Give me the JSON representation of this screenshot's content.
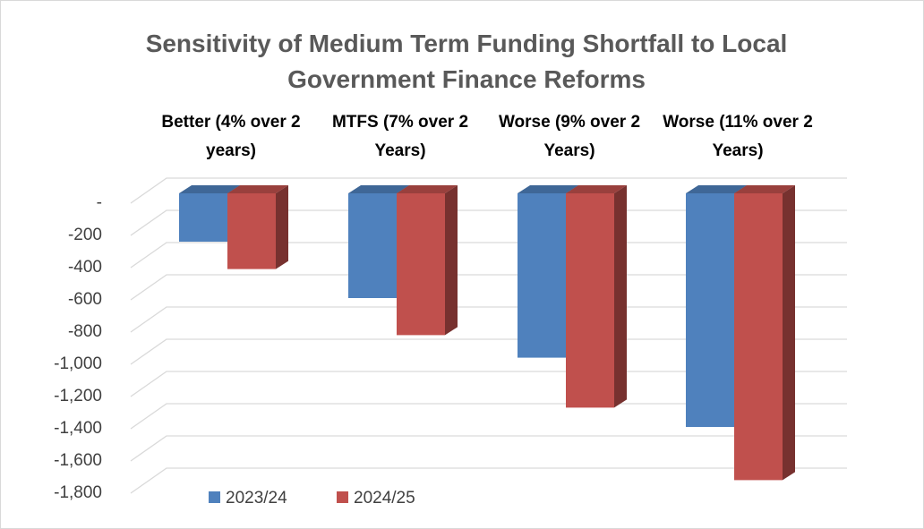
{
  "chart_data": {
    "type": "bar3d",
    "title": "Sensitivity of Medium Term Funding Shortfall to Local Government Finance Reforms",
    "categories": [
      "Better (4% over 2 years)",
      "MTFS (7% over 2 Years)",
      "Worse (9% over 2 Years)",
      "Worse (11% over 2 Years)"
    ],
    "series": [
      {
        "name": "2023/24",
        "color": "#4f81bd",
        "values": [
          -300,
          -650,
          -1020,
          -1450
        ]
      },
      {
        "name": "2024/25",
        "color": "#c0504d",
        "values": [
          -470,
          -880,
          -1330,
          -1780
        ]
      }
    ],
    "ylim": [
      -1800,
      0
    ],
    "yticks": [
      {
        "value": 0,
        "label": "-"
      },
      -200,
      -400,
      -600,
      -800,
      {
        "value": -1000,
        "label": "-1,000"
      },
      {
        "value": -1200,
        "label": "-1,200"
      },
      {
        "value": -1400,
        "label": "-1,400"
      },
      {
        "value": -1600,
        "label": "-1,600"
      },
      {
        "value": -1800,
        "label": "-1,800"
      }
    ],
    "grid": true,
    "legend": "bottom"
  }
}
